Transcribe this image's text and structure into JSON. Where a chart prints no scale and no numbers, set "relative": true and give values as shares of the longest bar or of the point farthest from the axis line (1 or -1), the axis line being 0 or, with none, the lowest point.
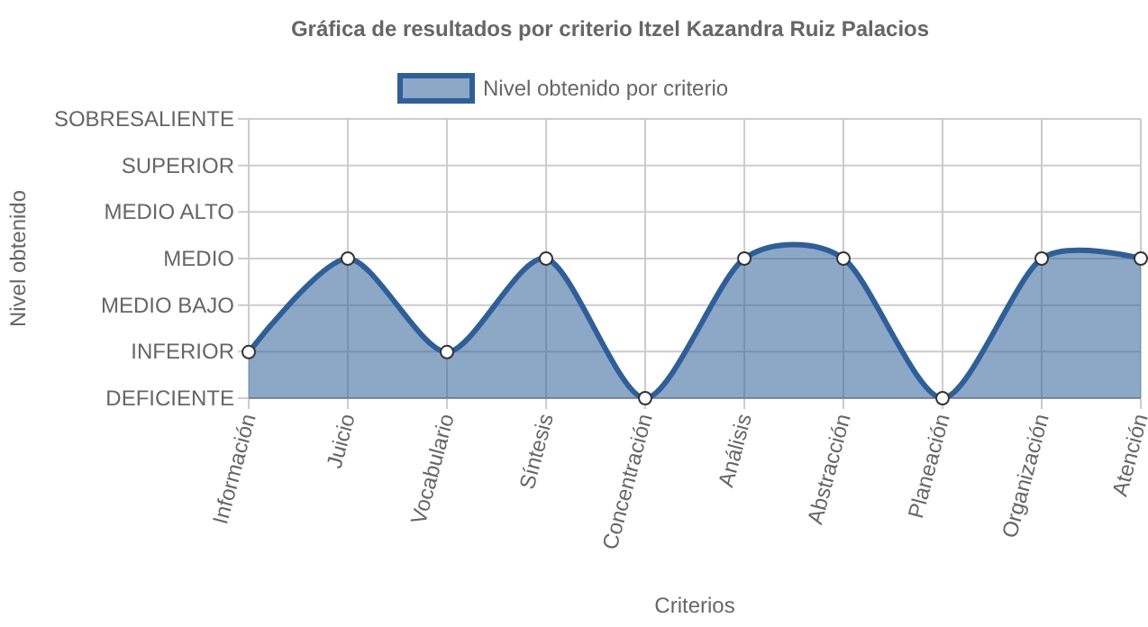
{
  "chart_data": {
    "type": "area",
    "title": "Gráfica de resultados por criterio Itzel Kazandra Ruiz Palacios",
    "xlabel": "Criterios",
    "categories": [
      "Información",
      "Juicio",
      "Vocabulario",
      "Síntesis",
      "Concentración",
      "Análisis",
      "Abstracción",
      "Planeación",
      "Organización",
      "Atención"
    ],
    "series": [
      {
        "name": "Nivel obtenido por criterio",
        "color": "#2f5f98",
        "values": [
          0.33,
          1,
          0.33,
          1,
          0,
          1,
          1,
          0,
          1,
          1
        ]
      }
    ],
    "relative": true,
    "annotations": [
      "Nivel obtenido",
      "SOBRESALIENTE",
      "SUPERIOR",
      "MEDIO ALTO",
      "MEDIO",
      "MEDIO BAJO",
      "INFERIOR",
      "DEFICIENTE"
    ],
    "grid": true,
    "legend": "top",
    "marker": "circle",
    "line_style": "solid"
  }
}
